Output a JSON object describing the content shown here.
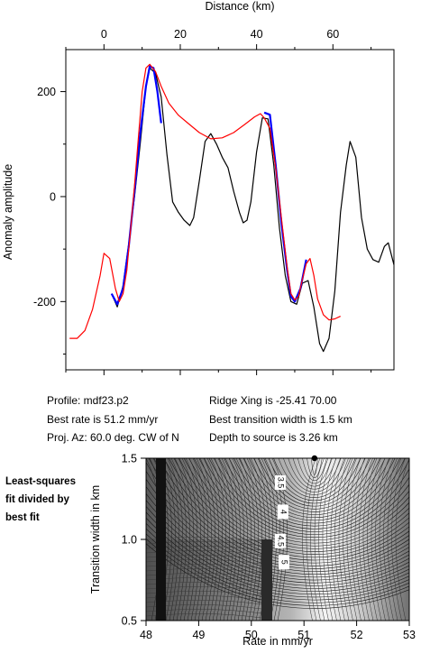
{
  "top_chart": {
    "xlabel": "Distance (km)",
    "ylabel": "Anomaly amplitude",
    "x_ticks": [
      0,
      20,
      40,
      60
    ],
    "y_ticks": [
      200,
      0,
      -200
    ],
    "xlim": [
      -10,
      76
    ],
    "ylim": [
      -330,
      280
    ]
  },
  "info": {
    "profile": "Profile: mdf23.p2",
    "best_rate": "Best rate is 51.2 mm/yr",
    "proj_az": "Proj. Az: 60.0 deg. CW of N",
    "ridge_xing": "Ridge Xing is -25.41  70.00",
    "best_width": "Best transition width is 1.5 km",
    "depth": "Depth to source is    3.26 km"
  },
  "side_note": "Least-squares fit divided by best fit",
  "bottom_chart": {
    "xlabel": "Rate in mm/yr",
    "ylabel": "Transition width in km",
    "x_ticks": [
      "48",
      "49",
      "50",
      "51",
      "52",
      "53"
    ],
    "y_ticks": [
      "1.5",
      "1.0",
      "0.5"
    ],
    "contour_labels": [
      "3.5",
      "4",
      "4.5",
      "5"
    ],
    "best_fit_point": [
      51.2,
      1.5
    ]
  },
  "chart_data": [
    {
      "type": "line",
      "xlabel": "Distance (km)",
      "ylabel": "Anomaly amplitude",
      "xlim": [
        -10,
        76
      ],
      "ylim": [
        -330,
        280
      ],
      "series": [
        {
          "color": "#000000",
          "points": [
            [
              2,
              -185
            ],
            [
              3.5,
              -210
            ],
            [
              5,
              -170
            ],
            [
              6.5,
              -90
            ],
            [
              8,
              0
            ],
            [
              9.5,
              100
            ],
            [
              11,
              210
            ],
            [
              12,
              245
            ],
            [
              13.5,
              235
            ],
            [
              15,
              190
            ],
            [
              16.5,
              80
            ],
            [
              18,
              -10
            ],
            [
              19.5,
              -30
            ],
            [
              21,
              -45
            ],
            [
              22.5,
              -55
            ],
            [
              23.5,
              -40
            ],
            [
              25,
              30
            ],
            [
              26.5,
              105
            ],
            [
              28,
              120
            ],
            [
              29.5,
              100
            ],
            [
              31,
              75
            ],
            [
              32.5,
              55
            ],
            [
              34,
              10
            ],
            [
              35.5,
              -30
            ],
            [
              36.5,
              -50
            ],
            [
              37.5,
              -45
            ],
            [
              38.5,
              -10
            ],
            [
              40,
              85
            ],
            [
              41.5,
              150
            ],
            [
              43,
              148
            ],
            [
              44.5,
              60
            ],
            [
              46,
              -60
            ],
            [
              47.5,
              -150
            ],
            [
              49,
              -200
            ],
            [
              50.5,
              -205
            ],
            [
              52,
              -165
            ],
            [
              53.5,
              -160
            ],
            [
              55,
              -210
            ],
            [
              56.5,
              -280
            ],
            [
              57.5,
              -295
            ],
            [
              59,
              -270
            ],
            [
              60.5,
              -180
            ],
            [
              62,
              -30
            ],
            [
              63.5,
              60
            ],
            [
              64.5,
              105
            ],
            [
              66,
              75
            ],
            [
              67.5,
              -40
            ],
            [
              69,
              -100
            ],
            [
              70.5,
              -120
            ],
            [
              72,
              -125
            ],
            [
              73.5,
              -95
            ],
            [
              74.5,
              -88
            ],
            [
              76,
              -130
            ]
          ]
        },
        {
          "color": "#0000ff",
          "points": [
            [
              2,
              -185
            ],
            [
              3.5,
              -205
            ],
            [
              5,
              -175
            ],
            [
              6.5,
              -95
            ],
            [
              8,
              10
            ],
            [
              9.5,
              120
            ],
            [
              11,
              210
            ],
            [
              12,
              248
            ],
            [
              13,
              245
            ],
            [
              14,
              200
            ],
            [
              15,
              140
            ]
          ]
        },
        {
          "color": "#0000ff",
          "points": [
            [
              42,
              160
            ],
            [
              43.5,
              156
            ],
            [
              45,
              60
            ],
            [
              46.5,
              -50
            ],
            [
              48,
              -140
            ],
            [
              49,
              -190
            ],
            [
              50,
              -200
            ],
            [
              51.5,
              -175
            ],
            [
              53,
              -120
            ]
          ]
        },
        {
          "color": "#ff0000",
          "points": [
            [
              -9,
              -270
            ],
            [
              -7,
              -270
            ],
            [
              -5,
              -255
            ],
            [
              -3,
              -215
            ],
            [
              -1,
              -150
            ],
            [
              0,
              -108
            ],
            [
              1.5,
              -118
            ],
            [
              3,
              -175
            ],
            [
              4,
              -200
            ],
            [
              5,
              -185
            ],
            [
              6,
              -140
            ],
            [
              7,
              -60
            ],
            [
              8,
              20
            ],
            [
              9,
              110
            ],
            [
              10,
              200
            ],
            [
              11,
              245
            ],
            [
              12,
              252
            ],
            [
              13.5,
              238
            ],
            [
              15,
              210
            ],
            [
              17,
              178
            ],
            [
              19.5,
              155
            ],
            [
              22,
              140
            ],
            [
              25,
              122
            ],
            [
              28,
              110
            ],
            [
              31,
              112
            ],
            [
              34,
              122
            ],
            [
              37,
              138
            ],
            [
              39.5,
              152
            ],
            [
              41,
              158
            ],
            [
              42,
              150
            ],
            [
              43.5,
              130
            ],
            [
              45,
              55
            ],
            [
              46.5,
              -40
            ],
            [
              48,
              -135
            ],
            [
              49,
              -185
            ],
            [
              50,
              -197
            ],
            [
              51,
              -190
            ],
            [
              52,
              -158
            ],
            [
              53,
              -128
            ],
            [
              54,
              -118
            ],
            [
              55,
              -150
            ],
            [
              56,
              -195
            ],
            [
              57.5,
              -225
            ],
            [
              59,
              -235
            ],
            [
              60.5,
              -233
            ],
            [
              62,
              -228
            ]
          ]
        }
      ]
    },
    {
      "type": "heatmap",
      "xlabel": "Rate in mm/yr",
      "ylabel": "Transition width in km",
      "xlim": [
        48,
        53
      ],
      "ylim": [
        0.5,
        1.5
      ],
      "x_ticks": [
        48,
        49,
        50,
        51,
        52,
        53
      ],
      "y_ticks": [
        0.5,
        1.0,
        1.5
      ],
      "contour_labels": [
        3.5,
        4,
        4.5,
        5
      ],
      "best_fit": [
        51.2,
        1.5
      ]
    }
  ]
}
